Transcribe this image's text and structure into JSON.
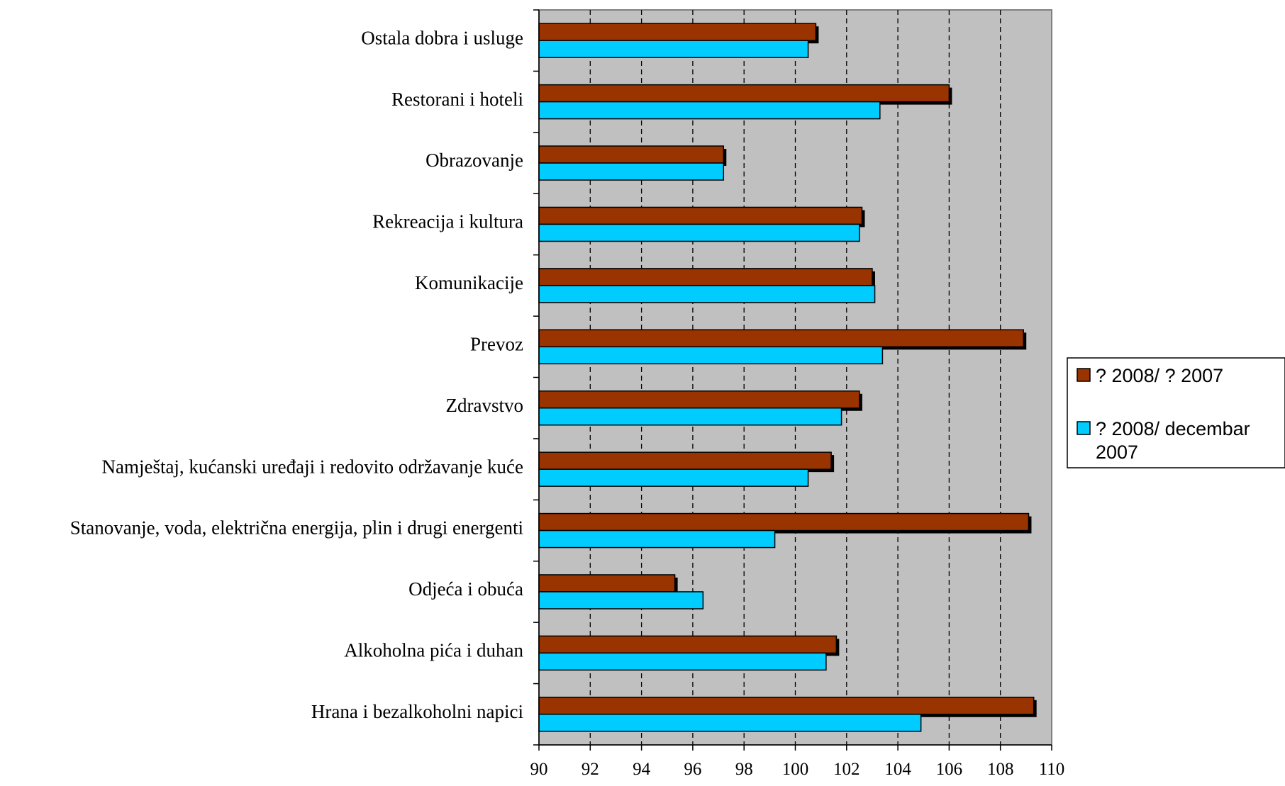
{
  "chart_data": {
    "type": "bar",
    "orientation": "horizontal",
    "categories": [
      "Ostala dobra i usluge",
      "Restorani i hoteli",
      "Obrazovanje",
      "Rekreacija i kultura",
      "Komunikacije",
      "Prevoz",
      "Zdravstvo",
      "Namještaj, kućanski uređaji i redovito održavanje kuće",
      "Stanovanje, voda, električna energija, plin i drugi energenti",
      "Odjeća i obuća",
      "Alkoholna pića i duhan",
      "Hrana i bezalkoholni napici"
    ],
    "series": [
      {
        "name": "? 2008/  ? 2007",
        "legend_lines": [
          "? 2008/  ? 2007"
        ],
        "color": "#993300",
        "values": [
          100.8,
          106.0,
          97.2,
          102.6,
          103.0,
          108.9,
          102.5,
          101.4,
          109.1,
          95.3,
          101.6,
          109.3
        ]
      },
      {
        "name": "? 2008/  decembar 2007",
        "legend_lines": [
          "? 2008/  decembar",
          "2007"
        ],
        "color": "#00CCFF",
        "values": [
          100.5,
          103.3,
          97.2,
          102.5,
          103.1,
          103.4,
          101.8,
          100.5,
          99.2,
          96.4,
          101.2,
          104.9
        ]
      }
    ],
    "xlim": [
      90,
      110
    ],
    "x_ticks": [
      "90",
      "92",
      "94",
      "96",
      "98",
      "100",
      "102",
      "104",
      "106",
      "108",
      "110"
    ],
    "title": "",
    "xlabel": "",
    "ylabel": "",
    "grid": "vertical dashed",
    "legend_position": "right",
    "plot_background": "#C0C0C0"
  }
}
